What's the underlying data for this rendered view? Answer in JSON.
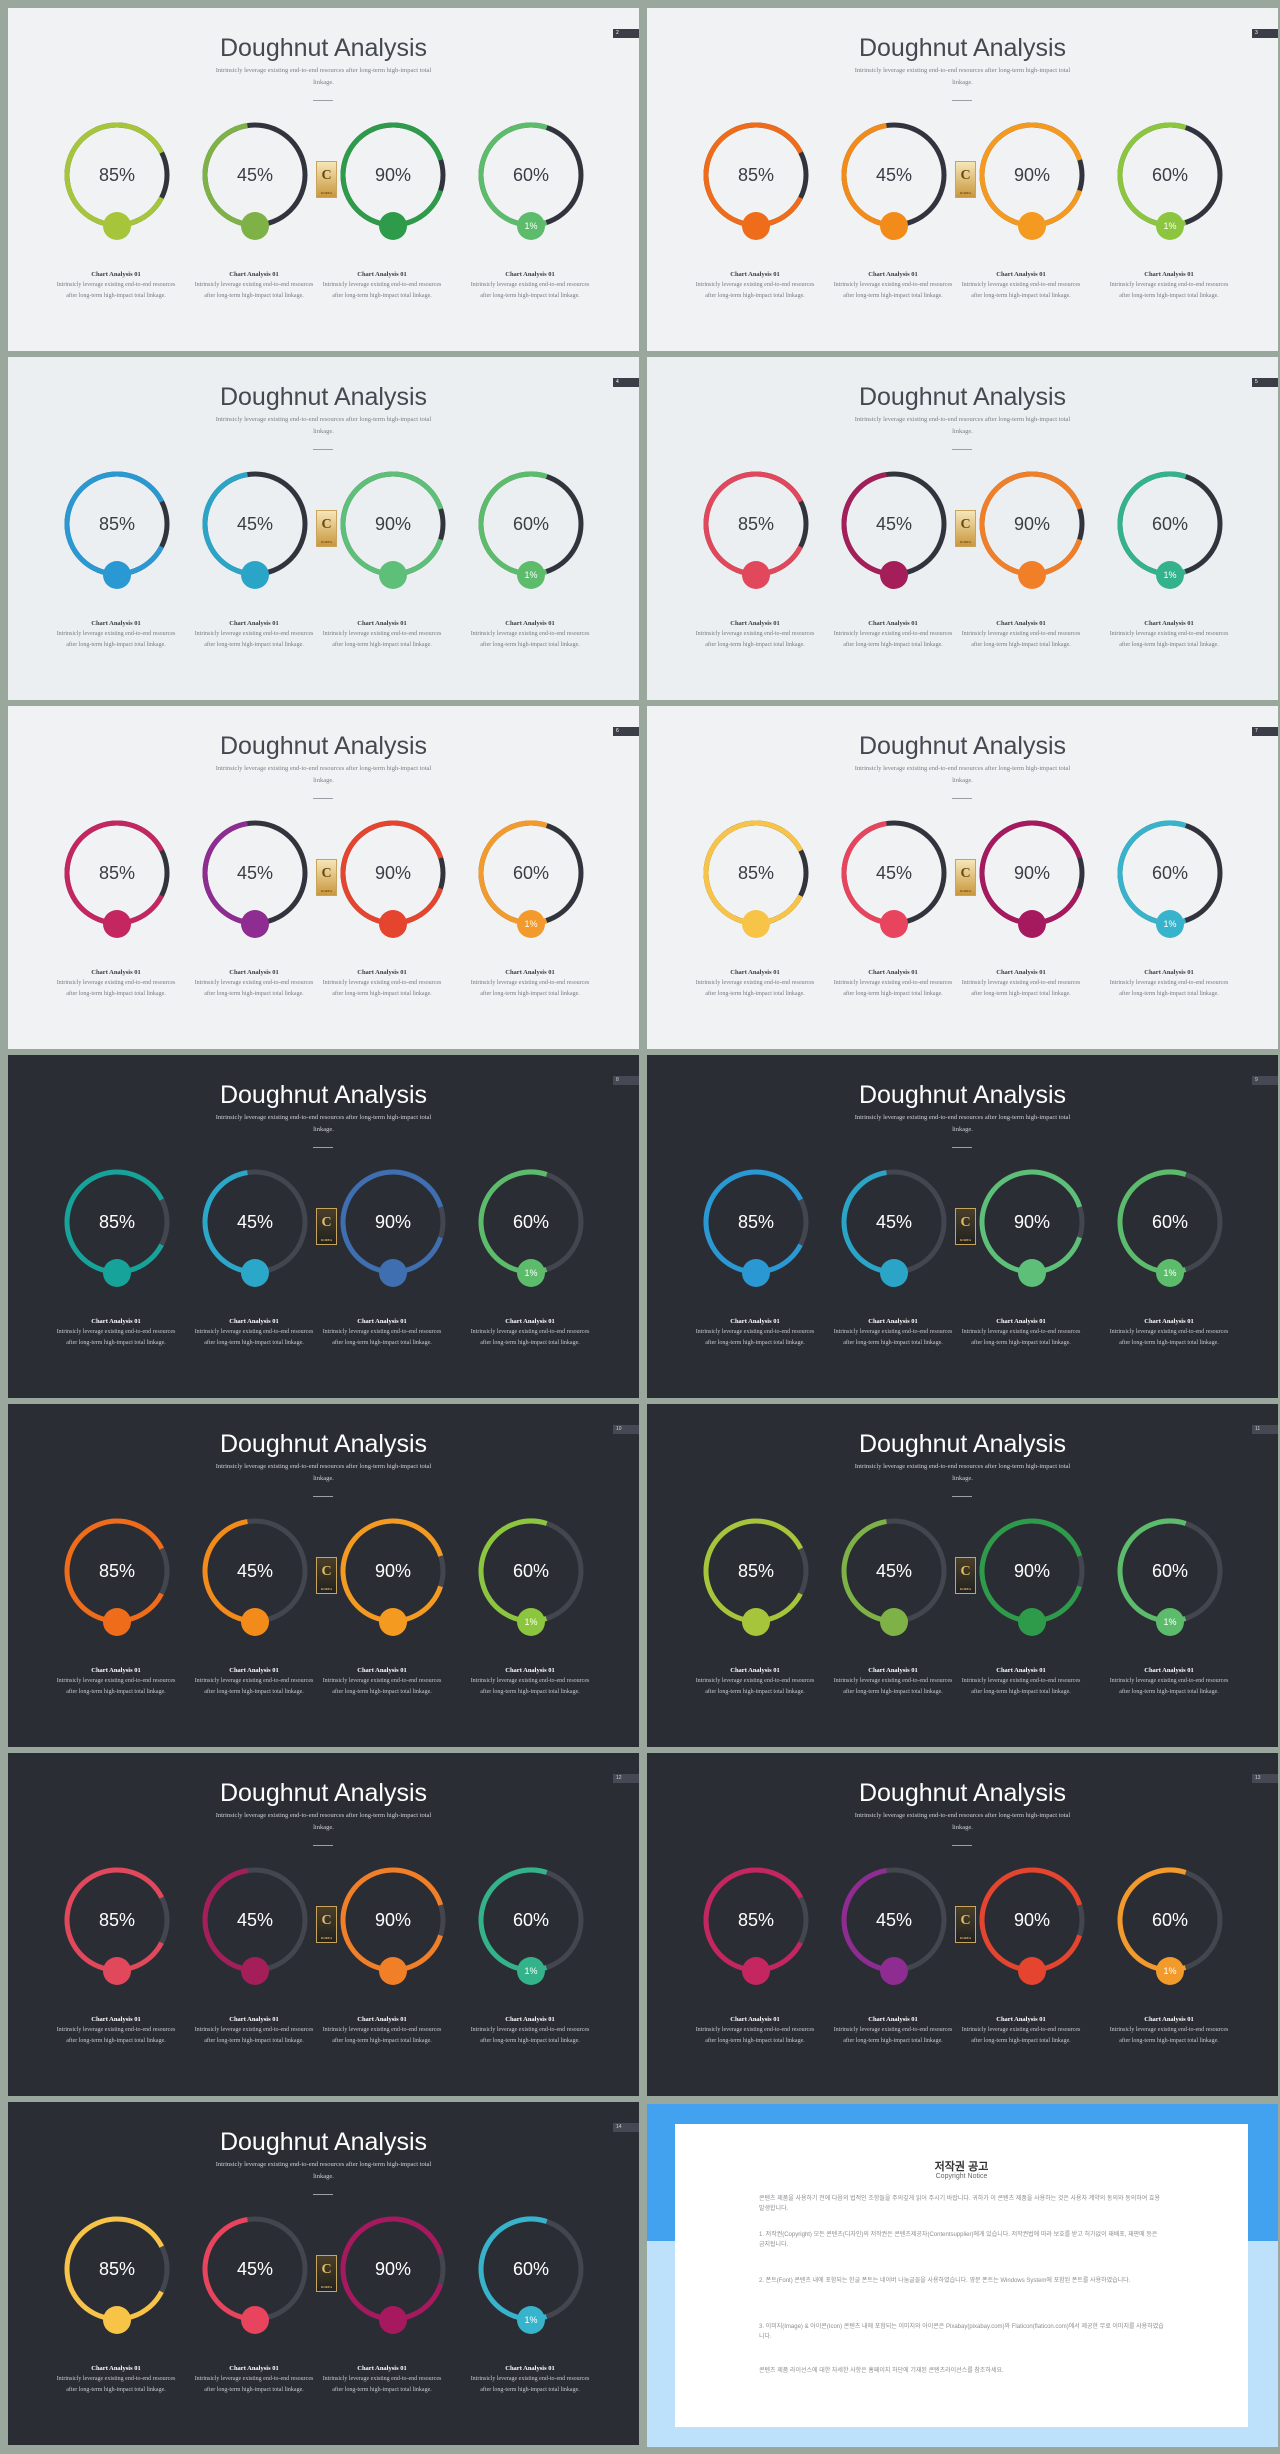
{
  "slide_title": "Doughnut Analysis",
  "slide_subtitle": "Intrinsicly leverage existing end-to-end resources after long-term high-impact total linkage.",
  "caption_title": "Chart Analysis 01",
  "caption_text": "Intrinsicly leverage existing end-to-end resources after long-term high-impact total linkage.",
  "logo_letter": "C",
  "logo_small": "KOREA",
  "percentages": [
    "85%",
    "45%",
    "90%",
    "60%"
  ],
  "values": [
    0.85,
    0.45,
    0.9,
    0.6
  ],
  "dot_label": "1%",
  "colors": {
    "light_track": "#31343c",
    "dark_track": "#44464f"
  },
  "slides": [
    {
      "page": "2",
      "theme": "light",
      "colors": [
        "#a6c53a",
        "#7eb247",
        "#2e9b4a",
        "#5cbc6c"
      ]
    },
    {
      "page": "3",
      "theme": "light",
      "colors": [
        "#ef6c1a",
        "#f38b1b",
        "#f59a21",
        "#8cc63e"
      ]
    },
    {
      "page": "4",
      "theme": "light",
      "colors": [
        "#2a98d3",
        "#2aa5c8",
        "#5dbf78",
        "#5cbc6c"
      ]
    },
    {
      "page": "5",
      "theme": "light",
      "colors": [
        "#e2485b",
        "#a41f5a",
        "#f07f28",
        "#34b38a"
      ]
    },
    {
      "page": "6",
      "theme": "light",
      "colors": [
        "#c42660",
        "#8e2c92",
        "#e5452e",
        "#f39a2c"
      ]
    },
    {
      "page": "7",
      "theme": "light",
      "colors": [
        "#f8c447",
        "#e8445e",
        "#a6195f",
        "#38b3cc"
      ]
    },
    {
      "page": "8",
      "theme": "dark",
      "colors": [
        "#16a39a",
        "#2aa7c9",
        "#3f6fb0",
        "#5cbc6c"
      ]
    },
    {
      "page": "9",
      "theme": "dark",
      "colors": [
        "#2a98d3",
        "#2aa5c8",
        "#5dbf78",
        "#5cbc6c"
      ]
    },
    {
      "page": "10",
      "theme": "dark",
      "colors": [
        "#ef6c1a",
        "#f38b1b",
        "#f59a21",
        "#8cc63e"
      ]
    },
    {
      "page": "11",
      "theme": "dark",
      "colors": [
        "#a6c53a",
        "#7eb247",
        "#2e9b4a",
        "#5cbc6c"
      ]
    },
    {
      "page": "12",
      "theme": "dark",
      "colors": [
        "#e2485b",
        "#a41f5a",
        "#f07f28",
        "#34b38a"
      ]
    },
    {
      "page": "13",
      "theme": "dark",
      "colors": [
        "#c42660",
        "#8e2c92",
        "#e5452e",
        "#f39a2c"
      ]
    },
    {
      "page": "14",
      "theme": "dark",
      "colors": [
        "#f8c447",
        "#e8445e",
        "#a6195f",
        "#38b3cc"
      ]
    }
  ],
  "notice": {
    "title": "저작권 공고",
    "subtitle": "Copyright Notice",
    "paragraphs": [
      "콘텐츠 제품을 사용하기 전에 다음의 법적인 조항들을 주의깊게 읽어 주시기 바랍니다. 귀하가 이 콘텐츠 제품을 사용하는 것은 사용자 계약의 동의와 동의하여 효용 발생합니다.",
      "1. 저작권(Copyright) 모든 콘텐츠(디자인)의 저작권은 콘텐츠제공자(Contentsupplier)에게 있습니다. 저작권법에 따라 보호를 받고 허가없이 재배포, 재판매 등은 금지됩니다.",
      "2. 폰트(Font) 콘텐츠 내에 포함되는 한글 폰트는 네이버 나눔글꼴을 사용하였습니다. 영문 폰트는 Windows System에 포함된 폰트를 사용하였습니다.",
      "3. 이미지(Image) & 아이콘(Icon) 콘텐츠 내에 포함되는 이미지와 아이콘은 Pixabay(pixabay.com)와 Flaticon(flaticon.com)에서 제공한 무료 이미지를 사용하였습니다.",
      "콘텐츠 제품 라이선스에 대한 자세한 사항은 홈페이지 하단에 기재된 콘텐츠라이선스를 참조하세요."
    ]
  }
}
